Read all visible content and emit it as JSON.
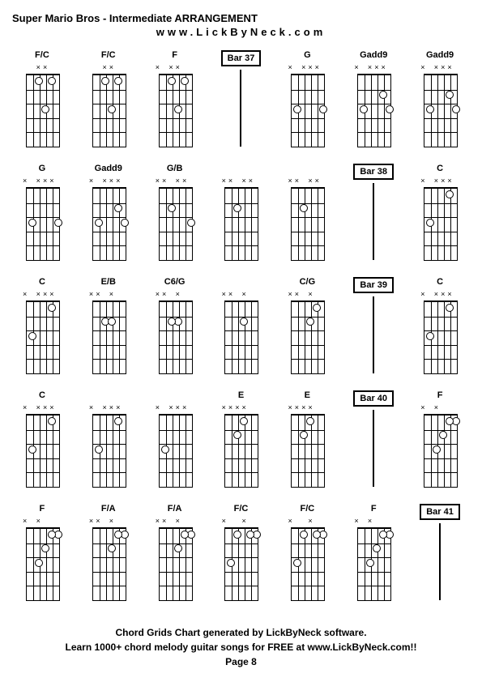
{
  "title": "Super Mario Bros - Intermediate ARRANGEMENT",
  "website": "www.LickByNeck.com",
  "footer_line1": "Chord Grids Chart generated by LickByNeck software.",
  "footer_line2": "Learn 1000+ chord melody guitar songs for FREE at www.LickByNeck.com!!",
  "page_label": "Page 8",
  "diagram": {
    "frets": 5,
    "strings": 6,
    "width": 40,
    "height": 88,
    "dot_size": 8
  },
  "rows": [
    [
      {
        "type": "chord",
        "name": "F/C",
        "mutes": "  xx  ",
        "dots": [
          [
            3,
            3
          ],
          [
            4,
            1
          ],
          [
            2,
            1
          ]
        ]
      },
      {
        "type": "chord",
        "name": "F/C",
        "mutes": "  xx  ",
        "dots": [
          [
            3,
            3
          ],
          [
            4,
            1
          ],
          [
            2,
            1
          ]
        ]
      },
      {
        "type": "chord",
        "name": "F",
        "mutes": "x xx  ",
        "dots": [
          [
            3,
            3
          ],
          [
            4,
            1
          ],
          [
            2,
            1
          ]
        ]
      },
      {
        "type": "bar",
        "label": "Bar 37"
      },
      {
        "type": "chord",
        "name": "G",
        "mutes": "x xxx ",
        "dots": [
          [
            1,
            3
          ],
          [
            5,
            3
          ]
        ]
      },
      {
        "type": "chord",
        "name": "Gadd9",
        "mutes": "x xxx ",
        "dots": [
          [
            1,
            3
          ],
          [
            5,
            3
          ],
          [
            4,
            2
          ]
        ]
      },
      {
        "type": "chord",
        "name": "Gadd9",
        "mutes": "x xxx ",
        "dots": [
          [
            1,
            3
          ],
          [
            5,
            3
          ],
          [
            4,
            2
          ]
        ]
      }
    ],
    [
      {
        "type": "chord",
        "name": "G",
        "mutes": "x xxx ",
        "dots": [
          [
            1,
            3
          ],
          [
            5,
            3
          ]
        ]
      },
      {
        "type": "chord",
        "name": "Gadd9",
        "mutes": "x xxx ",
        "dots": [
          [
            1,
            3
          ],
          [
            5,
            3
          ],
          [
            4,
            2
          ]
        ]
      },
      {
        "type": "chord",
        "name": "G/B",
        "mutes": "xx xx ",
        "dots": [
          [
            2,
            2
          ],
          [
            5,
            3
          ]
        ]
      },
      {
        "type": "chord",
        "name": "",
        "mutes": "xx xx ",
        "dots": [
          [
            2,
            2
          ]
        ]
      },
      {
        "type": "chord",
        "name": "",
        "mutes": "xx xx ",
        "dots": [
          [
            2,
            2
          ]
        ]
      },
      {
        "type": "bar",
        "label": "Bar 38"
      },
      {
        "type": "chord",
        "name": "C",
        "mutes": "x xxx ",
        "dots": [
          [
            1,
            3
          ],
          [
            4,
            1
          ]
        ]
      }
    ],
    [
      {
        "type": "chord",
        "name": "C",
        "mutes": "x xxx ",
        "dots": [
          [
            1,
            3
          ],
          [
            4,
            1
          ]
        ]
      },
      {
        "type": "chord",
        "name": "E/B",
        "mutes": "xx x  ",
        "dots": [
          [
            2,
            2
          ],
          [
            3,
            2
          ]
        ]
      },
      {
        "type": "chord",
        "name": "C6/G",
        "mutes": "xx x  ",
        "dots": [
          [
            3,
            2
          ],
          [
            2,
            2
          ]
        ]
      },
      {
        "type": "chord",
        "name": "",
        "mutes": "xx x  ",
        "dots": [
          [
            3,
            2
          ]
        ]
      },
      {
        "type": "chord",
        "name": "C/G",
        "mutes": "xx x  ",
        "dots": [
          [
            4,
            1
          ],
          [
            3,
            2
          ]
        ]
      },
      {
        "type": "bar",
        "label": "Bar 39"
      },
      {
        "type": "chord",
        "name": "C",
        "mutes": "x xxx ",
        "dots": [
          [
            1,
            3
          ],
          [
            4,
            1
          ]
        ]
      }
    ],
    [
      {
        "type": "chord",
        "name": "C",
        "mutes": "x xxx ",
        "dots": [
          [
            1,
            3
          ],
          [
            4,
            1
          ]
        ]
      },
      {
        "type": "chord",
        "name": "",
        "mutes": "x xxx ",
        "dots": [
          [
            1,
            3
          ],
          [
            4,
            1
          ]
        ]
      },
      {
        "type": "chord",
        "name": "",
        "mutes": "x xxx ",
        "dots": [
          [
            1,
            3
          ]
        ]
      },
      {
        "type": "chord",
        "name": "E",
        "mutes": "xxxx  ",
        "dots": [
          [
            3,
            1
          ],
          [
            2,
            2
          ]
        ]
      },
      {
        "type": "chord",
        "name": "E",
        "mutes": "xxxx  ",
        "dots": [
          [
            3,
            1
          ],
          [
            2,
            2
          ]
        ]
      },
      {
        "type": "bar",
        "label": "Bar 40"
      },
      {
        "type": "chord",
        "name": "F",
        "mutes": "x x   ",
        "dots": [
          [
            5,
            1
          ],
          [
            4,
            1
          ],
          [
            3,
            2
          ],
          [
            2,
            3
          ]
        ]
      }
    ],
    [
      {
        "type": "chord",
        "name": "F",
        "mutes": "x x   ",
        "dots": [
          [
            5,
            1
          ],
          [
            4,
            1
          ],
          [
            3,
            2
          ],
          [
            2,
            3
          ]
        ]
      },
      {
        "type": "chord",
        "name": "F/A",
        "mutes": "xx x  ",
        "dots": [
          [
            5,
            1
          ],
          [
            4,
            1
          ],
          [
            3,
            2
          ]
        ]
      },
      {
        "type": "chord",
        "name": "F/A",
        "mutes": "xx x  ",
        "dots": [
          [
            5,
            1
          ],
          [
            4,
            1
          ],
          [
            3,
            2
          ]
        ]
      },
      {
        "type": "chord",
        "name": "F/C",
        "mutes": "x  x  ",
        "dots": [
          [
            5,
            1
          ],
          [
            4,
            1
          ],
          [
            2,
            1
          ],
          [
            1,
            3
          ]
        ]
      },
      {
        "type": "chord",
        "name": "F/C",
        "mutes": "x  x  ",
        "dots": [
          [
            5,
            1
          ],
          [
            4,
            1
          ],
          [
            2,
            1
          ],
          [
            1,
            3
          ]
        ]
      },
      {
        "type": "chord",
        "name": "F",
        "mutes": "x x   ",
        "dots": [
          [
            5,
            1
          ],
          [
            4,
            1
          ],
          [
            3,
            2
          ],
          [
            2,
            3
          ]
        ]
      },
      {
        "type": "bar",
        "label": "Bar 41"
      }
    ]
  ]
}
